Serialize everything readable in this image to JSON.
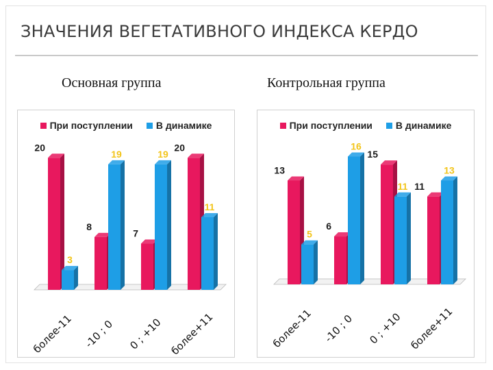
{
  "slide": {
    "title": "ЗНАЧЕНИЯ ВЕГЕТАТИВНОГО ИНДЕКСА КЕРДО"
  },
  "colors": {
    "series_admission": "#e8185e",
    "series_dynamics": "#1e9ee6",
    "label_dark": "#1a1a1a",
    "label_yellow": "#f2c419"
  },
  "chart_data": [
    {
      "type": "bar",
      "title": "Основная группа",
      "categories": [
        "более-11",
        "-10 ; 0",
        "0 ; +10",
        "более+11"
      ],
      "series": [
        {
          "name": "При поступлении",
          "values": [
            20,
            8,
            7,
            20
          ],
          "label_colors": [
            "dark",
            "dark",
            "dark",
            "dark"
          ]
        },
        {
          "name": "В динамике",
          "values": [
            3,
            19,
            19,
            11
          ],
          "label_colors": [
            "yellow",
            "yellow",
            "yellow",
            "yellow"
          ]
        }
      ],
      "ylim": [
        0,
        22
      ],
      "legend": "top",
      "grid": false
    },
    {
      "type": "bar",
      "title": "Контрольная группа",
      "categories": [
        "более-11",
        "-10 ; 0",
        "0 ; +10",
        "более+11"
      ],
      "series": [
        {
          "name": "При поступлении",
          "values": [
            13,
            6,
            15,
            11
          ],
          "label_colors": [
            "dark",
            "dark",
            "dark",
            "dark"
          ]
        },
        {
          "name": "В динамике",
          "values": [
            5,
            16,
            11,
            13
          ],
          "label_colors": [
            "yellow",
            "yellow",
            "yellow",
            "yellow"
          ]
        }
      ],
      "ylim": [
        0,
        17.5
      ],
      "legend": "top",
      "grid": false
    }
  ]
}
